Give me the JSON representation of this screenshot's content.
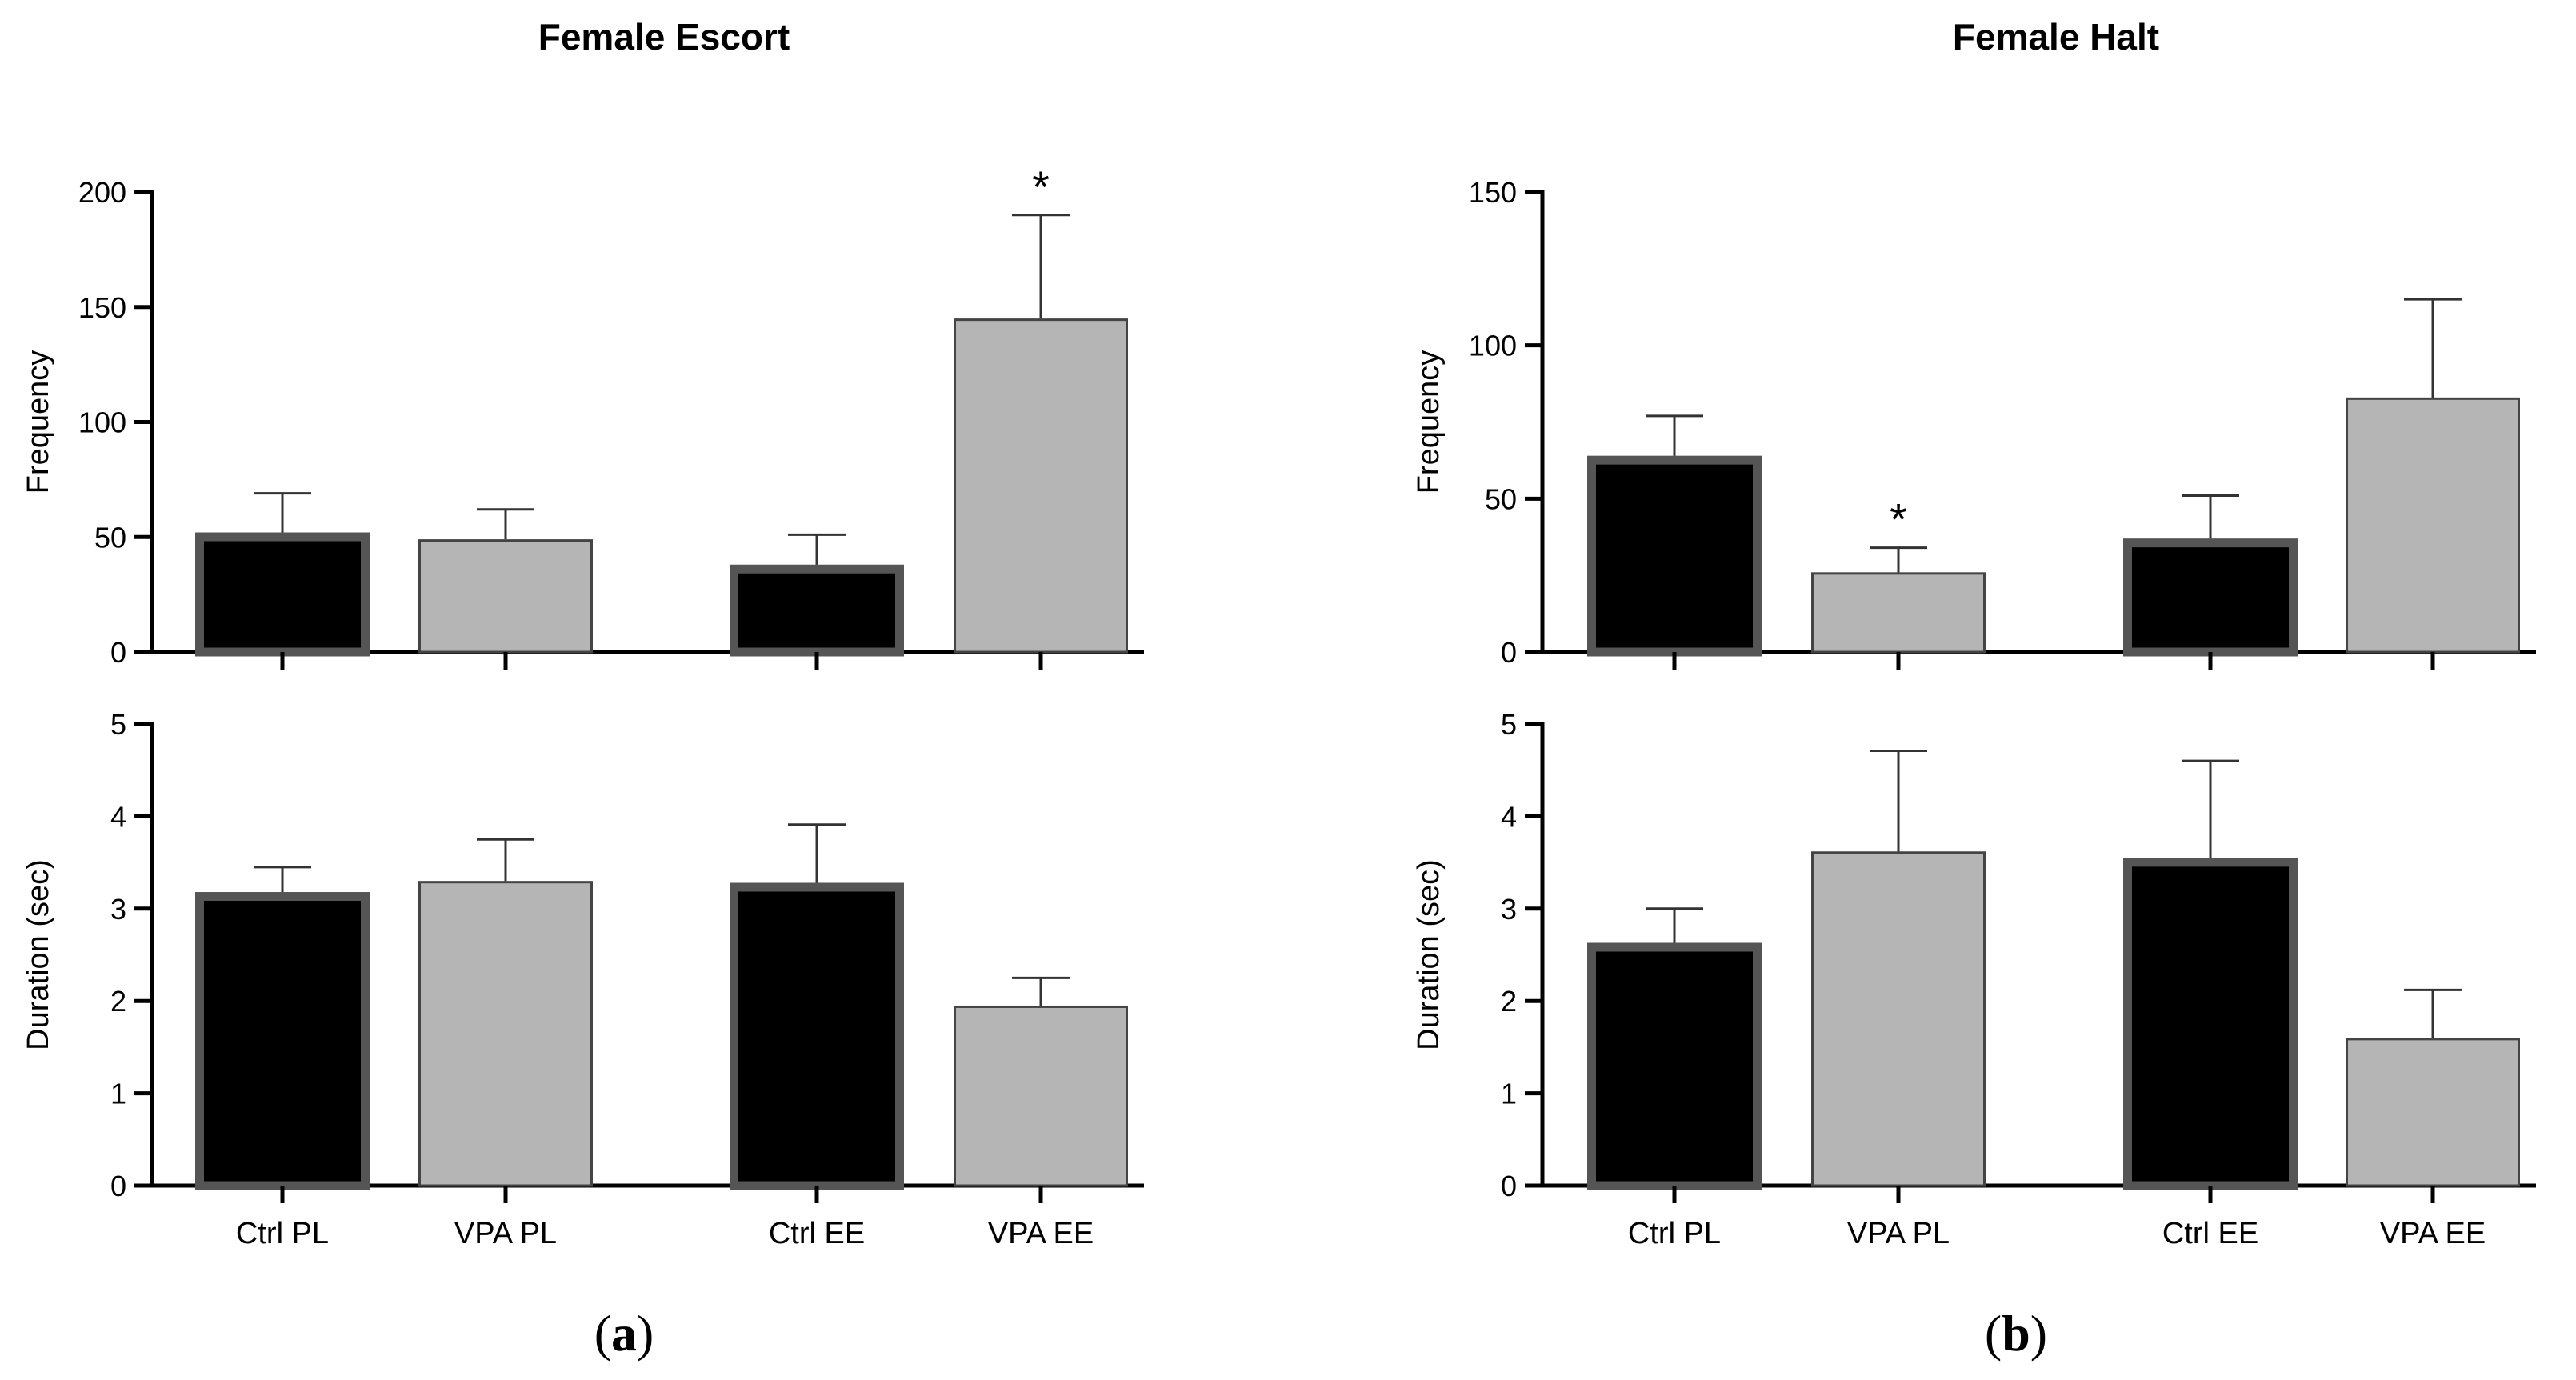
{
  "colors": {
    "ctrl_fill": "#000000",
    "ctrl_edge": "#555555",
    "vpa_fill": "#b5b5b5",
    "vpa_edge": "#444444"
  },
  "panels": [
    {
      "letter": "a",
      "title": "Female Escort"
    },
    {
      "letter": "b",
      "title": "Female Halt"
    }
  ],
  "chart_data": [
    {
      "type": "bar",
      "panel": "a",
      "position": "top",
      "title": "Female Escort",
      "xlabel": "",
      "ylabel": "Frequency",
      "ylim": [
        0,
        200
      ],
      "yticks": [
        0,
        50,
        100,
        150,
        200
      ],
      "categories": [
        "Ctrl PL",
        "VPA PL",
        "Ctrl EE",
        "VPA EE"
      ],
      "values": [
        52,
        49,
        38,
        145
      ],
      "errors": [
        17,
        13,
        13,
        45
      ],
      "significant": [
        false,
        false,
        false,
        true
      ],
      "significance_marker": "*",
      "show_x_labels": false
    },
    {
      "type": "bar",
      "panel": "a",
      "position": "bottom",
      "xlabel": "",
      "ylabel": "Duration (sec)",
      "ylim": [
        0,
        5
      ],
      "yticks": [
        0,
        1,
        2,
        3,
        4,
        5
      ],
      "categories": [
        "Ctrl PL",
        "VPA PL",
        "Ctrl EE",
        "VPA EE"
      ],
      "values": [
        3.18,
        3.3,
        3.28,
        1.95
      ],
      "errors": [
        0.27,
        0.45,
        0.63,
        0.3
      ],
      "significant": [
        false,
        false,
        false,
        false
      ],
      "significance_marker": "*",
      "show_x_labels": true
    },
    {
      "type": "bar",
      "panel": "b",
      "position": "top",
      "title": "Female Halt",
      "xlabel": "",
      "ylabel": "Frequency",
      "ylim": [
        0,
        150
      ],
      "yticks": [
        0,
        50,
        100,
        150
      ],
      "categories": [
        "Ctrl PL",
        "VPA PL",
        "Ctrl EE",
        "VPA EE"
      ],
      "values": [
        64,
        26,
        37,
        83
      ],
      "errors": [
        13,
        8,
        14,
        32
      ],
      "significant": [
        false,
        true,
        false,
        false
      ],
      "significance_marker": "*",
      "show_x_labels": false
    },
    {
      "type": "bar",
      "panel": "b",
      "position": "bottom",
      "xlabel": "",
      "ylabel": "Duration (sec)",
      "ylim": [
        0,
        5
      ],
      "yticks": [
        0,
        1,
        2,
        3,
        4,
        5
      ],
      "categories": [
        "Ctrl PL",
        "VPA PL",
        "Ctrl EE",
        "VPA EE"
      ],
      "values": [
        2.63,
        3.62,
        3.55,
        1.6
      ],
      "errors": [
        0.37,
        1.09,
        1.05,
        0.52
      ],
      "significant": [
        false,
        false,
        false,
        false
      ],
      "significance_marker": "*",
      "show_x_labels": true
    }
  ]
}
